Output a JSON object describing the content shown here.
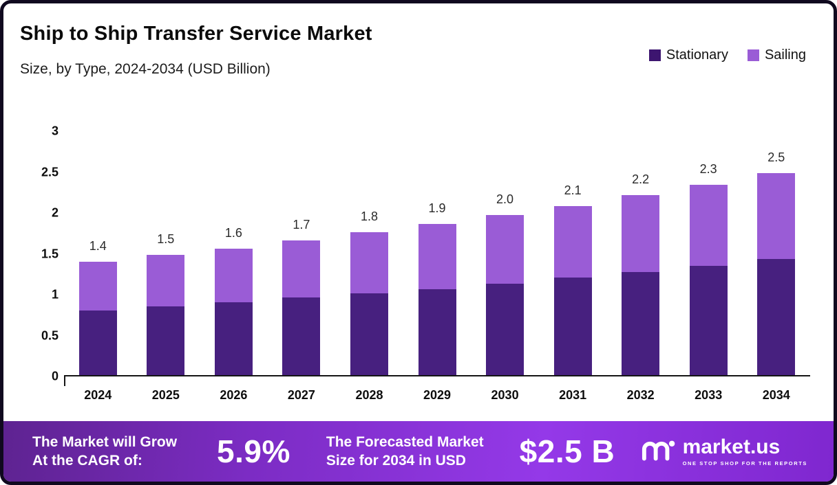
{
  "title": "Ship to Ship Transfer Service Market",
  "subtitle": "Size, by Type, 2024-2034 (USD Billion)",
  "legend": [
    {
      "label": "Stationary",
      "color": "#3d1570"
    },
    {
      "label": "Sailing",
      "color": "#9a5cd6"
    }
  ],
  "chart_data": {
    "type": "bar",
    "stacked": true,
    "title": "Ship to Ship Transfer Service Market Size, by Type, 2024-2034 (USD Billion)",
    "categories": [
      "2024",
      "2025",
      "2026",
      "2027",
      "2028",
      "2029",
      "2030",
      "2031",
      "2032",
      "2033",
      "2034"
    ],
    "series": [
      {
        "name": "Stationary",
        "color": "#47207f",
        "values": [
          0.79,
          0.84,
          0.89,
          0.95,
          1.0,
          1.05,
          1.12,
          1.19,
          1.26,
          1.34,
          1.42
        ]
      },
      {
        "name": "Sailing",
        "color": "#9a5cd6",
        "values": [
          0.6,
          0.63,
          0.66,
          0.7,
          0.75,
          0.8,
          0.84,
          0.88,
          0.94,
          0.99,
          1.05
        ]
      }
    ],
    "totals": [
      "1.4",
      "1.5",
      "1.6",
      "1.7",
      "1.8",
      "1.9",
      "2.0",
      "2.1",
      "2.2",
      "2.3",
      "2.5"
    ],
    "xlabel": "",
    "ylabel": "",
    "ylim": [
      0,
      3
    ],
    "yticks": [
      "0",
      "0.5",
      "1",
      "1.5",
      "2",
      "2.5",
      "3"
    ],
    "grid": false,
    "legend_position": "top-right"
  },
  "footer": {
    "grow_line1": "The Market will Grow",
    "grow_line2": "At the CAGR of:",
    "cagr_value": "5.9%",
    "forecast_line1": "The Forecasted Market",
    "forecast_line2": "Size for 2034 in USD",
    "forecast_value": "$2.5 B",
    "brand": {
      "name": "market.us",
      "tagline": "ONE STOP SHOP FOR THE REPORTS"
    }
  }
}
